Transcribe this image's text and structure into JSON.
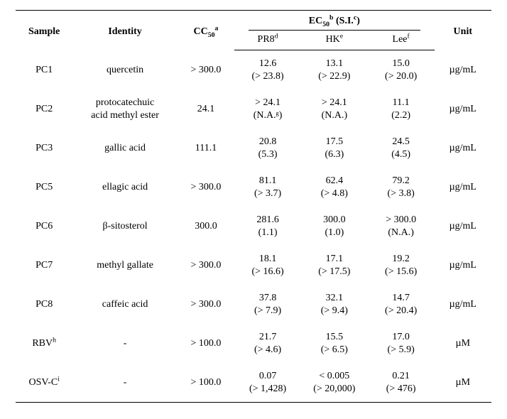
{
  "headers": {
    "sample": "Sample",
    "identity": "Identity",
    "cc50": "CC",
    "cc50_sup": "a",
    "ec_group": "EC",
    "ec_group_paren": "(S.I.",
    "ec_group_sup_b": "b",
    "ec_group_sup_c": "c",
    "pr8": "PR8",
    "pr8_sup": "d",
    "hk": "HK",
    "hk_sup": "e",
    "lee": "Lee",
    "lee_sup": "f",
    "unit": "Unit"
  },
  "rows": [
    {
      "sample": "PC1",
      "identity_top": "quercetin",
      "identity_bot": "",
      "cc50": "> 300.0",
      "pr8_top": "12.6",
      "pr8_bot": "(> 23.8)",
      "hk_top": "13.1",
      "hk_bot": "(> 22.9)",
      "lee_top": "15.0",
      "lee_bot": "(> 20.0)",
      "unit": "µg/mL"
    },
    {
      "sample": "PC2",
      "identity_top": "protocatechuic",
      "identity_bot": "acid methyl ester",
      "cc50": "24.1",
      "pr8_top": "> 24.1",
      "pr8_bot": "(N.A.ᵍ)",
      "hk_top": "> 24.1",
      "hk_bot": "(N.A.)",
      "lee_top": "11.1",
      "lee_bot": "(2.2)",
      "unit": "µg/mL"
    },
    {
      "sample": "PC3",
      "identity_top": "gallic acid",
      "identity_bot": "",
      "cc50": "111.1",
      "pr8_top": "20.8",
      "pr8_bot": "(5.3)",
      "hk_top": "17.5",
      "hk_bot": "(6.3)",
      "lee_top": "24.5",
      "lee_bot": "(4.5)",
      "unit": "µg/mL"
    },
    {
      "sample": "PC5",
      "identity_top": "ellagic acid",
      "identity_bot": "",
      "cc50": "> 300.0",
      "pr8_top": "81.1",
      "pr8_bot": "(> 3.7)",
      "hk_top": "62.4",
      "hk_bot": "(> 4.8)",
      "lee_top": "79.2",
      "lee_bot": "(> 3.8)",
      "unit": "µg/mL"
    },
    {
      "sample": "PC6",
      "identity_top": "β-sitosterol",
      "identity_bot": "",
      "cc50": "300.0",
      "pr8_top": "281.6",
      "pr8_bot": "(1.1)",
      "hk_top": "300.0",
      "hk_bot": "(1.0)",
      "lee_top": "> 300.0",
      "lee_bot": "(N.A.)",
      "unit": "µg/mL"
    },
    {
      "sample": "PC7",
      "identity_top": "methyl gallate",
      "identity_bot": "",
      "cc50": "> 300.0",
      "pr8_top": "18.1",
      "pr8_bot": "(> 16.6)",
      "hk_top": "17.1",
      "hk_bot": "(> 17.5)",
      "lee_top": "19.2",
      "lee_bot": "(> 15.6)",
      "unit": "µg/mL"
    },
    {
      "sample": "PC8",
      "identity_top": "caffeic acid",
      "identity_bot": "",
      "cc50": "> 300.0",
      "pr8_top": "37.8",
      "pr8_bot": "(> 7.9)",
      "hk_top": "32.1",
      "hk_bot": "(> 9.4)",
      "lee_top": "14.7",
      "lee_bot": "(> 20.4)",
      "unit": "µg/mL"
    },
    {
      "sample": "RBV",
      "sample_sup": "h",
      "identity_top": "-",
      "identity_bot": "",
      "cc50": "> 100.0",
      "pr8_top": "21.7",
      "pr8_bot": "(> 4.6)",
      "hk_top": "15.5",
      "hk_bot": "(> 6.5)",
      "lee_top": "17.0",
      "lee_bot": "(> 5.9)",
      "unit": "µM"
    },
    {
      "sample": "OSV-C",
      "sample_sup": "i",
      "identity_top": "-",
      "identity_bot": "",
      "cc50": "> 100.0",
      "pr8_top": "0.07",
      "pr8_bot": "(> 1,428)",
      "hk_top": "< 0.005",
      "hk_bot": "(> 20,000)",
      "lee_top": "0.21",
      "lee_bot": "(> 476)",
      "unit": "µM"
    }
  ]
}
